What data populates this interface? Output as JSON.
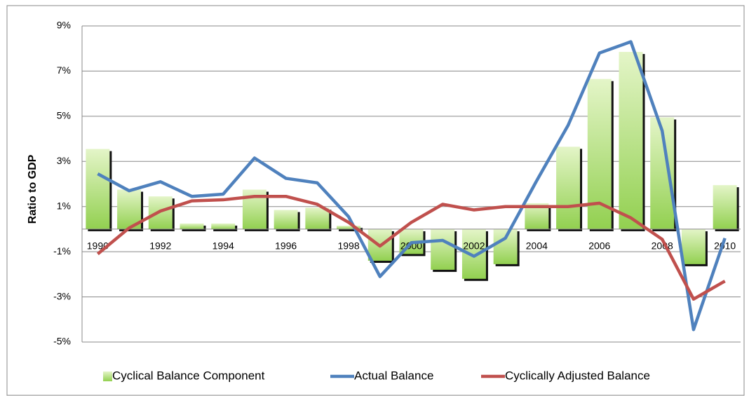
{
  "chart_data": {
    "type": "bar_line",
    "y_label": "Ratio to GDP",
    "categories": [
      "1990",
      null,
      "1992",
      null,
      "1994",
      null,
      "1996",
      null,
      "1998",
      null,
      "2000",
      null,
      "2002",
      null,
      "2004",
      null,
      "2006",
      null,
      "2008",
      null,
      "2010"
    ],
    "series": [
      {
        "name": "Cyclical Balance Component",
        "type": "bar",
        "color": "#92d050",
        "values": [
          3.55,
          1.75,
          1.45,
          0.25,
          0.25,
          1.75,
          0.85,
          0.95,
          0.15,
          -1.4,
          -1.1,
          -1.8,
          -2.2,
          -1.55,
          1.15,
          3.65,
          6.65,
          7.85,
          4.95,
          -1.55,
          1.95
        ]
      },
      {
        "name": "Actual Balance",
        "type": "line",
        "color": "#4f81bd",
        "values": [
          2.45,
          1.7,
          2.1,
          1.45,
          1.55,
          3.15,
          2.25,
          2.05,
          0.55,
          -2.1,
          -0.6,
          -0.5,
          -1.2,
          -0.4,
          2.15,
          4.6,
          7.8,
          8.3,
          4.35,
          -4.45,
          -0.4
        ]
      },
      {
        "name": "Cyclically Adjusted Balance",
        "type": "line",
        "color": "#c0504d",
        "values": [
          -1.1,
          0.05,
          0.8,
          1.25,
          1.3,
          1.45,
          1.45,
          1.1,
          0.3,
          -0.75,
          0.3,
          1.1,
          0.85,
          1.0,
          1.0,
          1.0,
          1.15,
          0.5,
          -0.45,
          -3.1,
          -2.3
        ]
      }
    ],
    "ylim": [
      -5,
      9
    ],
    "yticks": [
      {
        "value": -5,
        "label": "-5%"
      },
      {
        "value": -3,
        "label": "-3%"
      },
      {
        "value": -1,
        "label": "-1%"
      },
      {
        "value": 1,
        "label": "1%"
      },
      {
        "value": 3,
        "label": "3%"
      },
      {
        "value": 5,
        "label": "5%"
      },
      {
        "value": 7,
        "label": "7%"
      },
      {
        "value": 9,
        "label": "9%"
      }
    ],
    "grid": true,
    "legend": "bottom"
  }
}
